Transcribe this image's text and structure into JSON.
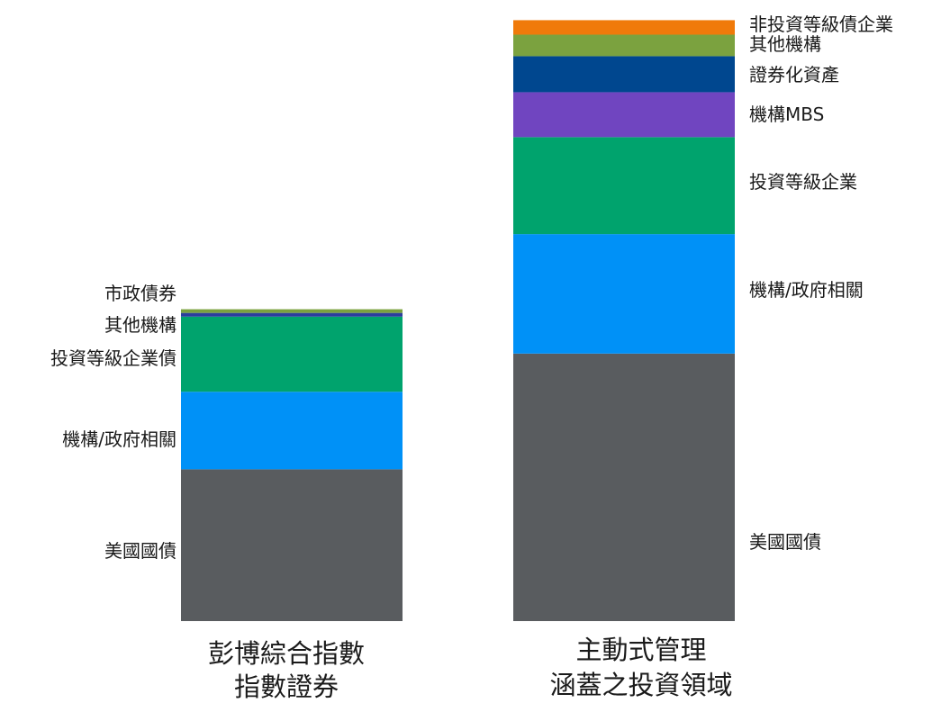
{
  "chart_data": [
    {
      "type": "bar",
      "stacked": true,
      "category": "彭博綜合指數指數證券",
      "caption_lines": [
        "彭博綜合指數",
        "指數證券"
      ],
      "label_side": "left",
      "segments": [
        {
          "name": "美國國債",
          "value": 49.3,
          "color": "#595c5f"
        },
        {
          "name": "機構/政府相關",
          "value": 25.2,
          "color": "#0091f7"
        },
        {
          "name": "投資等級企業債",
          "value": 24.4,
          "color": "#00a36d"
        },
        {
          "name": "其他機構",
          "value": 1.2,
          "color": "#2c3e9e"
        },
        {
          "name": "市政債券",
          "value": 1.2,
          "color": "#7ba23f"
        }
      ]
    },
    {
      "type": "bar",
      "stacked": true,
      "category": "主動式管理涵蓋之投資領域",
      "caption_lines": [
        "主動式管理",
        "涵蓋之投資領域"
      ],
      "label_side": "right",
      "segments": [
        {
          "name": "美國國債",
          "value": 86.9,
          "color": "#595c5f"
        },
        {
          "name": "機構/政府相關",
          "value": 38.8,
          "color": "#0091f7"
        },
        {
          "name": "投資等級企業",
          "value": 31.5,
          "color": "#00a36d"
        },
        {
          "name": "機構MBS",
          "value": 14.6,
          "color": "#7045c0"
        },
        {
          "name": "證券化資產",
          "value": 11.7,
          "color": "#00478f"
        },
        {
          "name": "其他機構",
          "value": 7.0,
          "color": "#7ba23f"
        },
        {
          "name": "非投資等級債企業",
          "value": 4.7,
          "color": "#f07a0a"
        }
      ]
    }
  ]
}
